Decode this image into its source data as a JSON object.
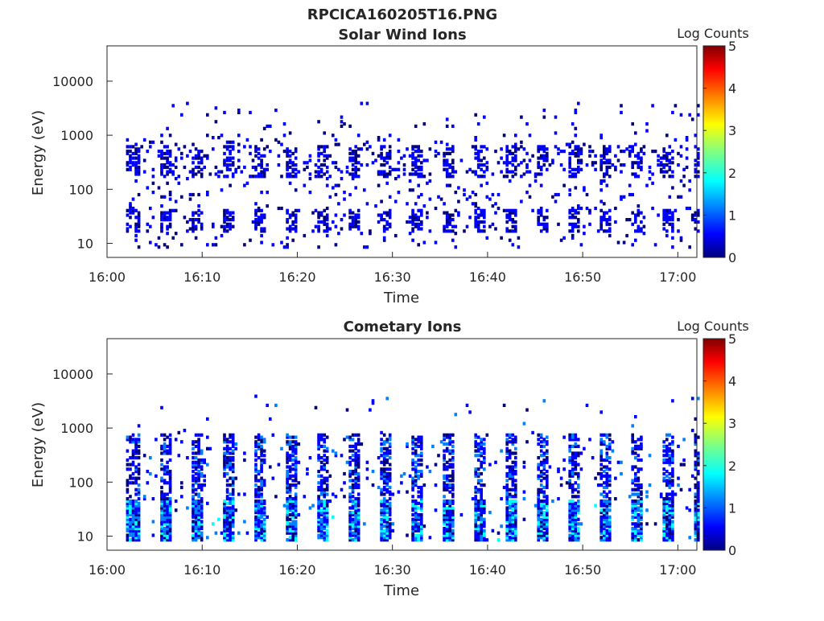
{
  "figure_title": "RPCICA160205T16.PNG",
  "colors": {
    "colormap": [
      "#00007f",
      "#0000ff",
      "#0080ff",
      "#00ffff",
      "#80ff80",
      "#ffff00",
      "#ff8000",
      "#ff0000",
      "#7f0000"
    ],
    "axis": "#262626"
  },
  "chart_data": [
    {
      "type": "heatmap",
      "title": "Solar Wind Ions",
      "xlabel": "Time",
      "ylabel": "Energy (eV)",
      "x_ticks": [
        "16:00",
        "16:10",
        "16:20",
        "16:30",
        "16:40",
        "16:50",
        "17:00"
      ],
      "x_range": [
        "16:00",
        "17:02"
      ],
      "y_scale": "log",
      "y_ticks": [
        "10",
        "100",
        "1000",
        "10000"
      ],
      "y_range": [
        5.5,
        45000
      ],
      "colorbar": {
        "label": "Log Counts",
        "ticks": [
          "0",
          "1",
          "2",
          "3",
          "4",
          "5"
        ],
        "range": [
          0,
          5
        ]
      },
      "data_window": [
        "16:02",
        "17:02"
      ],
      "typical_log_counts": [
        0,
        1.5
      ]
    },
    {
      "type": "heatmap",
      "title": "Cometary Ions",
      "xlabel": "Time",
      "ylabel": "Energy (eV)",
      "x_ticks": [
        "16:00",
        "16:10",
        "16:20",
        "16:30",
        "16:40",
        "16:50",
        "17:00"
      ],
      "x_range": [
        "16:00",
        "17:02"
      ],
      "y_scale": "log",
      "y_ticks": [
        "10",
        "100",
        "1000",
        "10000"
      ],
      "y_range": [
        5.5,
        45000
      ],
      "colorbar": {
        "label": "Log Counts",
        "ticks": [
          "0",
          "1",
          "2",
          "3",
          "4",
          "5"
        ],
        "range": [
          0,
          5
        ]
      },
      "data_window": [
        "16:02",
        "17:02"
      ],
      "typical_log_counts": [
        0,
        2
      ]
    }
  ]
}
